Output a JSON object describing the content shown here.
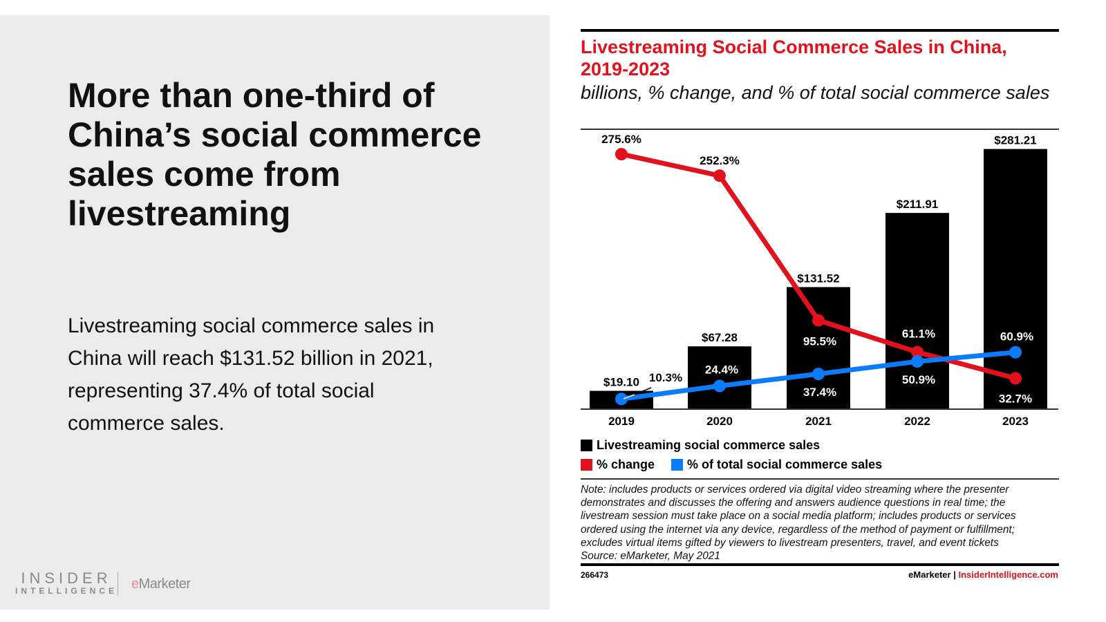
{
  "slide": {
    "headline": "More than one-third of China’s social commerce sales come from livestreaming",
    "body": "Livestreaming social commerce sales in China will reach $131.52 billion in 2021, representing 37.4% of total social commerce sales.",
    "logo_insider_line1": "INSIDER",
    "logo_insider_line2": "INTELLIGENCE",
    "logo_emarketer_e": "e",
    "logo_emarketer_rest": "Marketer"
  },
  "chart_data": {
    "type": "bar",
    "title": "Livestreaming Social Commerce Sales in China, 2019-2023",
    "subtitle": "billions, % change, and % of total social commerce sales",
    "categories": [
      "2019",
      "2020",
      "2021",
      "2022",
      "2023"
    ],
    "series": [
      {
        "name": "Livestreaming social commerce sales",
        "type": "bar",
        "color": "#000000",
        "values": [
          19.1,
          67.28,
          131.52,
          211.91,
          281.21
        ],
        "labels": [
          "$19.10",
          "$67.28",
          "$131.52",
          "$211.91",
          "$281.21"
        ]
      },
      {
        "name": "% change",
        "type": "line",
        "color": "#e3101d",
        "values": [
          275.6,
          252.3,
          95.5,
          61.1,
          32.7
        ],
        "labels": [
          "275.6%",
          "252.3%",
          "95.5%",
          "61.1%",
          "32.7%"
        ]
      },
      {
        "name": "% of total social commerce sales",
        "type": "line",
        "color": "#0a7cff",
        "values": [
          10.3,
          24.4,
          37.4,
          50.9,
          60.9
        ],
        "labels": [
          "10.3%",
          "24.4%",
          "37.4%",
          "50.9%",
          "60.9%"
        ]
      }
    ],
    "grid": false,
    "legend": "bottom",
    "note_lines": [
      "Note: includes products or services ordered via digital video streaming where the presenter",
      "demonstrates and discusses the offering and answers audience questions in real time; the",
      "livestream session must take place on a social media platform; includes products or services",
      "ordered using the internet via any device, regardless of the method of payment or fulfillment;",
      "excludes virtual items gifted by viewers to livestream presenters, travel, and event tickets"
    ],
    "source": "Source: eMarketer, May 2021",
    "chart_id": "266473",
    "footer_brand": "eMarketer",
    "footer_sep": "|",
    "footer_site": "InsiderIntelligence.com"
  }
}
